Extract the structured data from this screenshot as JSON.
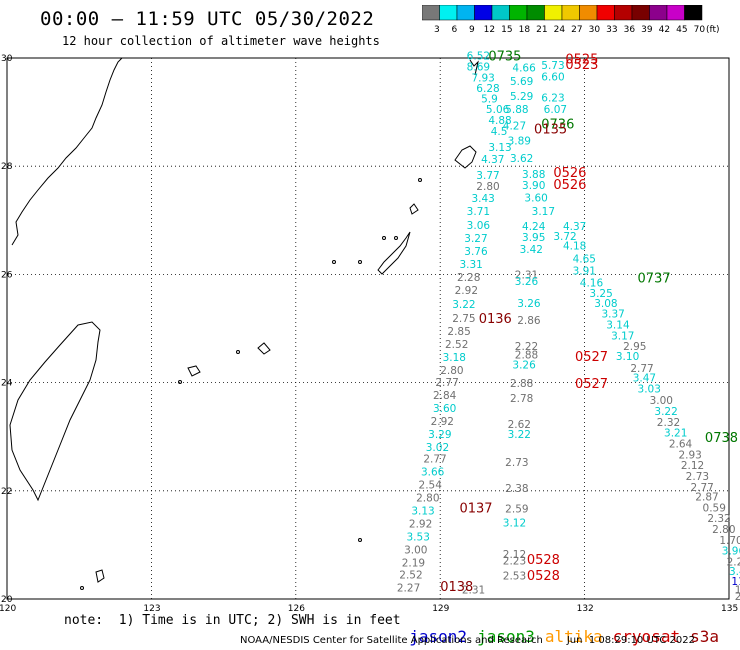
{
  "title": "00:00 – 11:59 UTC 05/30/2022",
  "subtitle": "12 hour collection of altimeter wave heights",
  "colorbar": {
    "unit": "(ft)",
    "labels": [
      "3",
      "6",
      "9",
      "12",
      "15",
      "18",
      "21",
      "24",
      "27",
      "30",
      "33",
      "36",
      "39",
      "42",
      "45",
      "70"
    ],
    "colors": [
      "#787878",
      "#00f0f0",
      "#00b4f0",
      "#0000e6",
      "#00c8c8",
      "#00b400",
      "#008c00",
      "#f0f000",
      "#f0c800",
      "#f08c00",
      "#f00000",
      "#b40000",
      "#780000",
      "#8c008c",
      "#c800c8",
      "#000000"
    ]
  },
  "axes": {
    "lon_labels": [
      {
        "lon": 120,
        "text": "120"
      },
      {
        "lon": 123,
        "text": "123"
      },
      {
        "lon": 126,
        "text": "126"
      },
      {
        "lon": 129,
        "text": "129"
      },
      {
        "lon": 132,
        "text": "132"
      },
      {
        "lon": 135,
        "text": "135"
      }
    ],
    "lat_labels": [
      {
        "lat": 30,
        "text": "30"
      },
      {
        "lat": 28,
        "text": "28"
      },
      {
        "lat": 26,
        "text": "26"
      },
      {
        "lat": 24,
        "text": "24"
      },
      {
        "lat": 22,
        "text": "22"
      },
      {
        "lat": 20,
        "text": "20"
      }
    ]
  },
  "colors": {
    "sat_jason2": "#0000cc",
    "sat_jason3": "#009900",
    "sat_altika": "#ff9900",
    "sat_cryosat": "#cc0000",
    "sat_s3a": "#990000",
    "wave_cyan": "#00cccc",
    "wave_gray": "#707070"
  },
  "time_labels": [
    {
      "text": "0735",
      "lon": 130.0,
      "lat": 29.95,
      "color": "#007700"
    },
    {
      "text": "0525",
      "lon": 131.6,
      "lat": 29.9,
      "color": "#cc0000"
    },
    {
      "text": "0523",
      "lon": 131.6,
      "lat": 29.8,
      "color": "#cc0000"
    },
    {
      "text": "0736",
      "lon": 131.1,
      "lat": 28.7,
      "color": "#007700"
    },
    {
      "text": "0135",
      "lon": 130.95,
      "lat": 28.6,
      "color": "#880000"
    },
    {
      "text": "0526",
      "lon": 131.35,
      "lat": 27.8,
      "color": "#cc0000"
    },
    {
      "text": "0526",
      "lon": 131.35,
      "lat": 27.58,
      "color": "#cc0000"
    },
    {
      "text": "0737",
      "lon": 133.1,
      "lat": 25.85,
      "color": "#007700"
    },
    {
      "text": "0136",
      "lon": 129.8,
      "lat": 25.1,
      "color": "#880000"
    },
    {
      "text": "0527",
      "lon": 131.8,
      "lat": 24.4,
      "color": "#cc0000"
    },
    {
      "text": "0527",
      "lon": 131.8,
      "lat": 23.9,
      "color": "#cc0000"
    },
    {
      "text": "0738",
      "lon": 134.5,
      "lat": 22.9,
      "color": "#007700"
    },
    {
      "text": "0137",
      "lon": 129.4,
      "lat": 21.6,
      "color": "#880000"
    },
    {
      "text": "0528",
      "lon": 130.8,
      "lat": 20.65,
      "color": "#cc0000"
    },
    {
      "text": "0528",
      "lon": 130.8,
      "lat": 20.35,
      "color": "#cc0000"
    },
    {
      "text": "0138",
      "lon": 129.0,
      "lat": 20.15,
      "color": "#880000"
    }
  ],
  "waves": [
    {
      "v": "6.52",
      "lon": 129.55,
      "lat": 29.97,
      "c": "cyan"
    },
    {
      "v": "8.69",
      "lon": 129.55,
      "lat": 29.77,
      "c": "cyan"
    },
    {
      "v": "7.93",
      "lon": 129.65,
      "lat": 29.57,
      "c": "cyan"
    },
    {
      "v": "6.28",
      "lon": 129.75,
      "lat": 29.37,
      "c": "cyan"
    },
    {
      "v": "5.9",
      "lon": 129.85,
      "lat": 29.18,
      "c": "cyan"
    },
    {
      "v": "5.06",
      "lon": 129.95,
      "lat": 28.98,
      "c": "cyan"
    },
    {
      "v": "4.88",
      "lon": 130.0,
      "lat": 28.78,
      "c": "cyan"
    },
    {
      "v": "4.5",
      "lon": 130.05,
      "lat": 28.58,
      "c": "cyan"
    },
    {
      "v": "3.13",
      "lon": 130.0,
      "lat": 28.28,
      "c": "cyan"
    },
    {
      "v": "4.37",
      "lon": 129.85,
      "lat": 28.06,
      "c": "cyan"
    },
    {
      "v": "3.77",
      "lon": 129.75,
      "lat": 27.76,
      "c": "cyan"
    },
    {
      "v": "2.80",
      "lon": 129.75,
      "lat": 27.56,
      "c": "gray"
    },
    {
      "v": "3.43",
      "lon": 129.65,
      "lat": 27.34,
      "c": "cyan"
    },
    {
      "v": "3.71",
      "lon": 129.55,
      "lat": 27.1,
      "c": "cyan"
    },
    {
      "v": "3.06",
      "lon": 129.55,
      "lat": 26.84,
      "c": "cyan"
    },
    {
      "v": "3.27",
      "lon": 129.5,
      "lat": 26.6,
      "c": "cyan"
    },
    {
      "v": "3.76",
      "lon": 129.5,
      "lat": 26.36,
      "c": "cyan"
    },
    {
      "v": "3.31",
      "lon": 129.4,
      "lat": 26.12,
      "c": "cyan"
    },
    {
      "v": "2.28",
      "lon": 129.35,
      "lat": 25.88,
      "c": "gray"
    },
    {
      "v": "2.92",
      "lon": 129.3,
      "lat": 25.64,
      "c": "gray"
    },
    {
      "v": "3.22",
      "lon": 129.25,
      "lat": 25.38,
      "c": "cyan"
    },
    {
      "v": "2.75",
      "lon": 129.25,
      "lat": 25.12,
      "c": "gray"
    },
    {
      "v": "2.85",
      "lon": 129.15,
      "lat": 24.88,
      "c": "gray"
    },
    {
      "v": "2.52",
      "lon": 129.1,
      "lat": 24.64,
      "c": "gray"
    },
    {
      "v": "3.18",
      "lon": 129.05,
      "lat": 24.4,
      "c": "cyan"
    },
    {
      "v": "2.80",
      "lon": 129.0,
      "lat": 24.16,
      "c": "gray"
    },
    {
      "v": "2.77",
      "lon": 128.9,
      "lat": 23.94,
      "c": "gray"
    },
    {
      "v": "2.84",
      "lon": 128.85,
      "lat": 23.7,
      "c": "gray"
    },
    {
      "v": "3.60",
      "lon": 128.85,
      "lat": 23.46,
      "c": "cyan"
    },
    {
      "v": "2.92",
      "lon": 128.8,
      "lat": 23.22,
      "c": "gray"
    },
    {
      "v": "3.29",
      "lon": 128.75,
      "lat": 22.98,
      "c": "cyan"
    },
    {
      "v": "3.02",
      "lon": 128.7,
      "lat": 22.74,
      "c": "cyan"
    },
    {
      "v": "2.77",
      "lon": 128.65,
      "lat": 22.52,
      "c": "gray"
    },
    {
      "v": "3.66",
      "lon": 128.6,
      "lat": 22.28,
      "c": "cyan"
    },
    {
      "v": "2.54",
      "lon": 128.55,
      "lat": 22.04,
      "c": "gray"
    },
    {
      "v": "2.80",
      "lon": 128.5,
      "lat": 21.8,
      "c": "gray"
    },
    {
      "v": "3.13",
      "lon": 128.4,
      "lat": 21.56,
      "c": "cyan"
    },
    {
      "v": "2.92",
      "lon": 128.35,
      "lat": 21.32,
      "c": "gray"
    },
    {
      "v": "3.53",
      "lon": 128.3,
      "lat": 21.08,
      "c": "cyan"
    },
    {
      "v": "3.00",
      "lon": 128.25,
      "lat": 20.84,
      "c": "gray"
    },
    {
      "v": "2.19",
      "lon": 128.2,
      "lat": 20.6,
      "c": "gray"
    },
    {
      "v": "2.52",
      "lon": 128.15,
      "lat": 20.38,
      "c": "gray"
    },
    {
      "v": "2.27",
      "lon": 128.1,
      "lat": 20.14,
      "c": "gray"
    },
    {
      "v": "4.66",
      "lon": 130.5,
      "lat": 29.75,
      "c": "cyan"
    },
    {
      "v": "5.69",
      "lon": 130.45,
      "lat": 29.5,
      "c": "cyan"
    },
    {
      "v": "5.29",
      "lon": 130.45,
      "lat": 29.22,
      "c": "cyan"
    },
    {
      "v": "5.88",
      "lon": 130.35,
      "lat": 28.98,
      "c": "cyan"
    },
    {
      "v": "4.27",
      "lon": 130.3,
      "lat": 28.68,
      "c": "cyan"
    },
    {
      "v": "3.89",
      "lon": 130.4,
      "lat": 28.4,
      "c": "cyan"
    },
    {
      "v": "3.62",
      "lon": 130.45,
      "lat": 28.08,
      "c": "cyan"
    },
    {
      "v": "3.88",
      "lon": 130.7,
      "lat": 27.78,
      "c": "cyan"
    },
    {
      "v": "3.90",
      "lon": 130.7,
      "lat": 27.58,
      "c": "cyan"
    },
    {
      "v": "3.60",
      "lon": 130.75,
      "lat": 27.35,
      "c": "cyan"
    },
    {
      "v": "3.17",
      "lon": 130.9,
      "lat": 27.1,
      "c": "cyan"
    },
    {
      "v": "4.24",
      "lon": 130.7,
      "lat": 26.82,
      "c": "cyan"
    },
    {
      "v": "3.95",
      "lon": 130.7,
      "lat": 26.62,
      "c": "cyan"
    },
    {
      "v": "3.42",
      "lon": 130.65,
      "lat": 26.4,
      "c": "cyan"
    },
    {
      "v": "2.31",
      "lon": 130.55,
      "lat": 25.92,
      "c": "gray"
    },
    {
      "v": "3.26",
      "lon": 130.55,
      "lat": 25.8,
      "c": "cyan"
    },
    {
      "v": "3.26",
      "lon": 130.6,
      "lat": 25.4,
      "c": "cyan"
    },
    {
      "v": "2.86",
      "lon": 130.6,
      "lat": 25.08,
      "c": "gray"
    },
    {
      "v": "2.22",
      "lon": 130.55,
      "lat": 24.6,
      "c": "gray"
    },
    {
      "v": "2.88",
      "lon": 130.55,
      "lat": 24.45,
      "c": "gray"
    },
    {
      "v": "3.26",
      "lon": 130.5,
      "lat": 24.26,
      "c": "cyan"
    },
    {
      "v": "2.88",
      "lon": 130.45,
      "lat": 23.92,
      "c": "gray"
    },
    {
      "v": "2.78",
      "lon": 130.45,
      "lat": 23.64,
      "c": "gray"
    },
    {
      "v": "2.62",
      "lon": 130.4,
      "lat": 23.16,
      "c": "gray"
    },
    {
      "v": "3.22",
      "lon": 130.4,
      "lat": 22.98,
      "c": "cyan"
    },
    {
      "v": "2.73",
      "lon": 130.35,
      "lat": 22.46,
      "c": "gray"
    },
    {
      "v": "2.38",
      "lon": 130.35,
      "lat": 21.98,
      "c": "gray"
    },
    {
      "v": "2.59",
      "lon": 130.35,
      "lat": 21.6,
      "c": "gray"
    },
    {
      "v": "3.12",
      "lon": 130.3,
      "lat": 21.34,
      "c": "cyan"
    },
    {
      "v": "2.12",
      "lon": 130.3,
      "lat": 20.76,
      "c": "gray"
    },
    {
      "v": "2.23",
      "lon": 130.3,
      "lat": 20.64,
      "c": "gray"
    },
    {
      "v": "2.53",
      "lon": 130.3,
      "lat": 20.36,
      "c": "gray"
    },
    {
      "v": "2.31",
      "lon": 129.45,
      "lat": 20.1,
      "c": "gray"
    },
    {
      "v": "5.73",
      "lon": 131.1,
      "lat": 29.8,
      "c": "cyan"
    },
    {
      "v": "6.60",
      "lon": 131.1,
      "lat": 29.58,
      "c": "cyan"
    },
    {
      "v": "6.23",
      "lon": 131.1,
      "lat": 29.2,
      "c": "cyan"
    },
    {
      "v": "6.07",
      "lon": 131.15,
      "lat": 28.98,
      "c": "cyan"
    },
    {
      "v": "4.37",
      "lon": 131.55,
      "lat": 26.82,
      "c": "cyan"
    },
    {
      "v": "3.72",
      "lon": 131.35,
      "lat": 26.64,
      "c": "cyan"
    },
    {
      "v": "4.18",
      "lon": 131.55,
      "lat": 26.46,
      "c": "cyan"
    },
    {
      "v": "4.65",
      "lon": 131.75,
      "lat": 26.22,
      "c": "cyan"
    },
    {
      "v": "3.91",
      "lon": 131.75,
      "lat": 26.0,
      "c": "cyan"
    },
    {
      "v": "4.16",
      "lon": 131.9,
      "lat": 25.78,
      "c": "cyan"
    },
    {
      "v": "3.25",
      "lon": 132.1,
      "lat": 25.58,
      "c": "cyan"
    },
    {
      "v": "3.08",
      "lon": 132.2,
      "lat": 25.4,
      "c": "cyan"
    },
    {
      "v": "3.37",
      "lon": 132.35,
      "lat": 25.2,
      "c": "cyan"
    },
    {
      "v": "3.14",
      "lon": 132.45,
      "lat": 25.0,
      "c": "cyan"
    },
    {
      "v": "3.17",
      "lon": 132.55,
      "lat": 24.8,
      "c": "cyan"
    },
    {
      "v": "2.95",
      "lon": 132.8,
      "lat": 24.6,
      "c": "gray"
    },
    {
      "v": "3.10",
      "lon": 132.65,
      "lat": 24.42,
      "c": "cyan"
    },
    {
      "v": "2.77",
      "lon": 132.95,
      "lat": 24.2,
      "c": "gray"
    },
    {
      "v": "3.47",
      "lon": 133.0,
      "lat": 24.02,
      "c": "cyan"
    },
    {
      "v": "3.03",
      "lon": 133.1,
      "lat": 23.82,
      "c": "cyan"
    },
    {
      "v": "3.00",
      "lon": 133.35,
      "lat": 23.6,
      "c": "gray"
    },
    {
      "v": "3.22",
      "lon": 133.45,
      "lat": 23.4,
      "c": "cyan"
    },
    {
      "v": "2.32",
      "lon": 133.5,
      "lat": 23.2,
      "c": "gray"
    },
    {
      "v": "3.21",
      "lon": 133.65,
      "lat": 23.0,
      "c": "cyan"
    },
    {
      "v": "2.64",
      "lon": 133.75,
      "lat": 22.8,
      "c": "gray"
    },
    {
      "v": "2.93",
      "lon": 133.95,
      "lat": 22.6,
      "c": "gray"
    },
    {
      "v": "2.12",
      "lon": 134.0,
      "lat": 22.4,
      "c": "gray"
    },
    {
      "v": "2.73",
      "lon": 134.1,
      "lat": 22.2,
      "c": "gray"
    },
    {
      "v": "2.77",
      "lon": 134.2,
      "lat": 22.0,
      "c": "gray"
    },
    {
      "v": "2.87",
      "lon": 134.3,
      "lat": 21.82,
      "c": "gray"
    },
    {
      "v": "0.59",
      "lon": 134.45,
      "lat": 21.62,
      "c": "gray"
    },
    {
      "v": "2.32",
      "lon": 134.55,
      "lat": 21.42,
      "c": "gray"
    },
    {
      "v": "2.80",
      "lon": 134.65,
      "lat": 21.22,
      "c": "gray"
    },
    {
      "v": "1.70",
      "lon": 134.8,
      "lat": 21.02,
      "c": "gray"
    },
    {
      "v": "3.96",
      "lon": 134.85,
      "lat": 20.82,
      "c": "cyan"
    },
    {
      "v": "2.25",
      "lon": 134.95,
      "lat": 20.62,
      "c": "gray"
    },
    {
      "v": "3.4",
      "lon": 135.0,
      "lat": 20.44,
      "c": "cyan"
    },
    {
      "v": "11.1",
      "lon": 135.05,
      "lat": 20.26,
      "c": "blue"
    },
    {
      "v": "1.",
      "lon": 135.12,
      "lat": 20.1,
      "c": "gray"
    },
    {
      "v": "2",
      "lon": 135.12,
      "lat": 19.98,
      "c": "gray"
    }
  ],
  "note": "note:  1) Time is in UTC; 2) SWH is in feet",
  "legend": [
    {
      "name": "jason2",
      "color": "#0000cc"
    },
    {
      "name": "jason3",
      "color": "#009900"
    },
    {
      "name": "altika",
      "color": "#ff9900"
    },
    {
      "name": "cryosat",
      "color": "#cc0000"
    },
    {
      "name": "s3a",
      "color": "#990000"
    }
  ],
  "footer": {
    "credit": "NOAA/NESDIS Center for Satellite Applications and Research",
    "datetime": "Jun  1 08:29:10 UTC 2022"
  }
}
